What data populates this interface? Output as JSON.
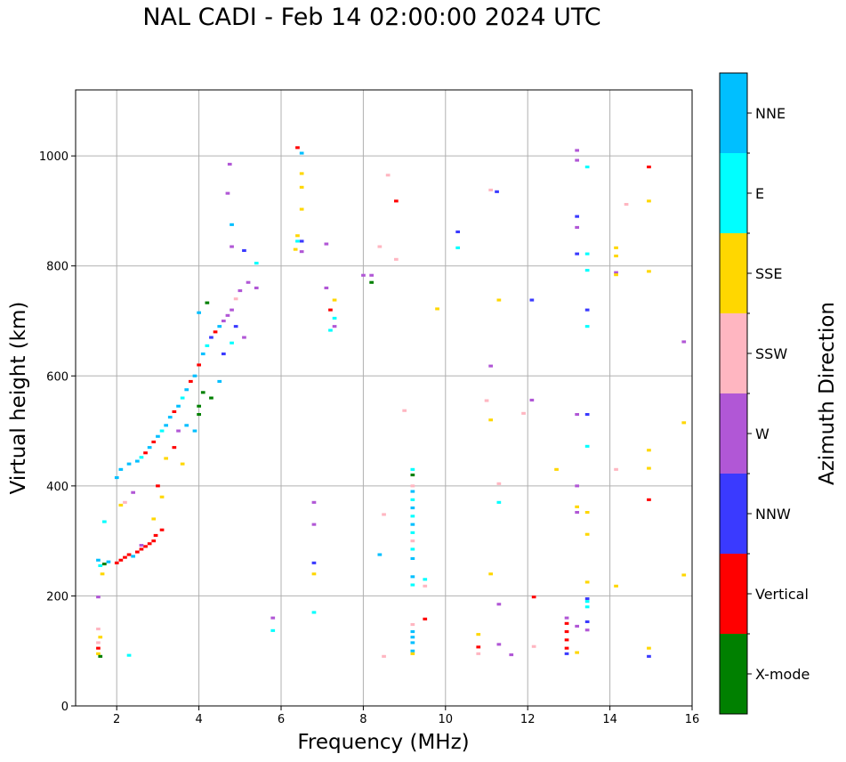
{
  "chart_data": {
    "type": "scatter",
    "title": "NAL CADI - Feb 14 02:00:00 2024 UTC",
    "xlabel": "Frequency (MHz)",
    "ylabel": "Virtual height (km)",
    "xlim": [
      1,
      16
    ],
    "ylim": [
      0,
      1120
    ],
    "xticks": [
      "2",
      "4",
      "6",
      "8",
      "10",
      "12",
      "14",
      "16"
    ],
    "yticks": [
      "0",
      "200",
      "400",
      "600",
      "800",
      "1000"
    ],
    "grid": true,
    "colorbar": {
      "label": "Azimuth Direction",
      "categories": [
        {
          "name": "X-mode",
          "color": "#008000"
        },
        {
          "name": "Vertical",
          "color": "#ff0000"
        },
        {
          "name": "NNW",
          "color": "#3a3aff"
        },
        {
          "name": "W",
          "color": "#b157d6"
        },
        {
          "name": "SSW",
          "color": "#ffb6c1"
        },
        {
          "name": "SSE",
          "color": "#ffd700"
        },
        {
          "name": "E",
          "color": "#00ffff"
        },
        {
          "name": "NNE",
          "color": "#00bfff"
        }
      ]
    },
    "points": [
      {
        "f": 1.55,
        "h": 95,
        "c": "SSE"
      },
      {
        "f": 1.55,
        "h": 105,
        "c": "Vertical"
      },
      {
        "f": 1.55,
        "h": 115,
        "c": "SSW"
      },
      {
        "f": 1.6,
        "h": 125,
        "c": "SSE"
      },
      {
        "f": 1.55,
        "h": 140,
        "c": "SSW"
      },
      {
        "f": 1.6,
        "h": 90,
        "c": "X-mode"
      },
      {
        "f": 1.55,
        "h": 198,
        "c": "W"
      },
      {
        "f": 1.55,
        "h": 265,
        "c": "NNE"
      },
      {
        "f": 1.6,
        "h": 255,
        "c": "E"
      },
      {
        "f": 1.7,
        "h": 258,
        "c": "X-mode"
      },
      {
        "f": 1.65,
        "h": 240,
        "c": "SSE"
      },
      {
        "f": 1.7,
        "h": 335,
        "c": "E"
      },
      {
        "f": 1.8,
        "h": 262,
        "c": "NNE"
      },
      {
        "f": 2.0,
        "h": 260,
        "c": "Vertical"
      },
      {
        "f": 2.1,
        "h": 265,
        "c": "Vertical"
      },
      {
        "f": 2.2,
        "h": 270,
        "c": "Vertical"
      },
      {
        "f": 2.3,
        "h": 275,
        "c": "Vertical"
      },
      {
        "f": 2.4,
        "h": 272,
        "c": "NNE"
      },
      {
        "f": 2.5,
        "h": 280,
        "c": "Vertical"
      },
      {
        "f": 2.6,
        "h": 285,
        "c": "Vertical"
      },
      {
        "f": 2.7,
        "h": 290,
        "c": "Vertical"
      },
      {
        "f": 2.8,
        "h": 295,
        "c": "Vertical"
      },
      {
        "f": 2.9,
        "h": 300,
        "c": "Vertical"
      },
      {
        "f": 2.95,
        "h": 310,
        "c": "Vertical"
      },
      {
        "f": 3.1,
        "h": 320,
        "c": "Vertical"
      },
      {
        "f": 2.6,
        "h": 292,
        "c": "W"
      },
      {
        "f": 2.3,
        "h": 92,
        "c": "E"
      },
      {
        "f": 2.1,
        "h": 365,
        "c": "SSE"
      },
      {
        "f": 2.2,
        "h": 370,
        "c": "SSW"
      },
      {
        "f": 2.4,
        "h": 388,
        "c": "W"
      },
      {
        "f": 2.0,
        "h": 415,
        "c": "NNE"
      },
      {
        "f": 2.1,
        "h": 430,
        "c": "NNE"
      },
      {
        "f": 2.3,
        "h": 440,
        "c": "NNE"
      },
      {
        "f": 2.5,
        "h": 445,
        "c": "NNE"
      },
      {
        "f": 2.6,
        "h": 452,
        "c": "E"
      },
      {
        "f": 2.7,
        "h": 460,
        "c": "Vertical"
      },
      {
        "f": 2.8,
        "h": 470,
        "c": "NNE"
      },
      {
        "f": 2.9,
        "h": 480,
        "c": "Vertical"
      },
      {
        "f": 3.0,
        "h": 490,
        "c": "NNE"
      },
      {
        "f": 3.1,
        "h": 500,
        "c": "E"
      },
      {
        "f": 3.2,
        "h": 510,
        "c": "NNE"
      },
      {
        "f": 3.3,
        "h": 525,
        "c": "NNE"
      },
      {
        "f": 3.4,
        "h": 535,
        "c": "Vertical"
      },
      {
        "f": 3.5,
        "h": 545,
        "c": "NNE"
      },
      {
        "f": 3.6,
        "h": 560,
        "c": "E"
      },
      {
        "f": 3.7,
        "h": 575,
        "c": "NNE"
      },
      {
        "f": 3.8,
        "h": 590,
        "c": "Vertical"
      },
      {
        "f": 3.9,
        "h": 600,
        "c": "NNE"
      },
      {
        "f": 4.0,
        "h": 620,
        "c": "Vertical"
      },
      {
        "f": 4.1,
        "h": 640,
        "c": "NNE"
      },
      {
        "f": 4.2,
        "h": 655,
        "c": "E"
      },
      {
        "f": 4.3,
        "h": 670,
        "c": "NNW"
      },
      {
        "f": 4.4,
        "h": 680,
        "c": "Vertical"
      },
      {
        "f": 4.5,
        "h": 690,
        "c": "NNE"
      },
      {
        "f": 4.6,
        "h": 700,
        "c": "W"
      },
      {
        "f": 4.7,
        "h": 710,
        "c": "W"
      },
      {
        "f": 4.8,
        "h": 720,
        "c": "W"
      },
      {
        "f": 4.9,
        "h": 740,
        "c": "SSW"
      },
      {
        "f": 5.0,
        "h": 755,
        "c": "W"
      },
      {
        "f": 5.2,
        "h": 770,
        "c": "W"
      },
      {
        "f": 5.4,
        "h": 760,
        "c": "W"
      },
      {
        "f": 4.2,
        "h": 733,
        "c": "X-mode"
      },
      {
        "f": 4.0,
        "h": 715,
        "c": "NNE"
      },
      {
        "f": 4.0,
        "h": 530,
        "c": "X-mode"
      },
      {
        "f": 4.0,
        "h": 545,
        "c": "X-mode"
      },
      {
        "f": 4.1,
        "h": 570,
        "c": "X-mode"
      },
      {
        "f": 3.2,
        "h": 450,
        "c": "SSE"
      },
      {
        "f": 3.4,
        "h": 470,
        "c": "Vertical"
      },
      {
        "f": 3.6,
        "h": 440,
        "c": "SSE"
      },
      {
        "f": 2.9,
        "h": 340,
        "c": "SSE"
      },
      {
        "f": 3.1,
        "h": 380,
        "c": "SSE"
      },
      {
        "f": 3.0,
        "h": 400,
        "c": "Vertical"
      },
      {
        "f": 3.5,
        "h": 500,
        "c": "W"
      },
      {
        "f": 3.7,
        "h": 510,
        "c": "NNE"
      },
      {
        "f": 3.9,
        "h": 500,
        "c": "NNE"
      },
      {
        "f": 4.3,
        "h": 560,
        "c": "X-mode"
      },
      {
        "f": 4.5,
        "h": 590,
        "c": "NNE"
      },
      {
        "f": 4.6,
        "h": 640,
        "c": "NNW"
      },
      {
        "f": 4.8,
        "h": 660,
        "c": "E"
      },
      {
        "f": 4.9,
        "h": 690,
        "c": "NNW"
      },
      {
        "f": 5.1,
        "h": 670,
        "c": "W"
      },
      {
        "f": 4.75,
        "h": 985,
        "c": "W"
      },
      {
        "f": 4.8,
        "h": 875,
        "c": "NNE"
      },
      {
        "f": 4.7,
        "h": 932,
        "c": "W"
      },
      {
        "f": 4.8,
        "h": 835,
        "c": "W"
      },
      {
        "f": 5.1,
        "h": 828,
        "c": "NNW"
      },
      {
        "f": 5.4,
        "h": 805,
        "c": "E"
      },
      {
        "f": 5.8,
        "h": 137,
        "c": "E"
      },
      {
        "f": 5.8,
        "h": 160,
        "c": "W"
      },
      {
        "f": 6.4,
        "h": 1015,
        "c": "Vertical"
      },
      {
        "f": 6.5,
        "h": 1005,
        "c": "NNE"
      },
      {
        "f": 6.5,
        "h": 968,
        "c": "SSE"
      },
      {
        "f": 6.5,
        "h": 943,
        "c": "SSE"
      },
      {
        "f": 6.5,
        "h": 903,
        "c": "SSE"
      },
      {
        "f": 6.4,
        "h": 855,
        "c": "SSE"
      },
      {
        "f": 6.5,
        "h": 845,
        "c": "NNW"
      },
      {
        "f": 6.35,
        "h": 830,
        "c": "SSE"
      },
      {
        "f": 6.5,
        "h": 826,
        "c": "W"
      },
      {
        "f": 6.4,
        "h": 845,
        "c": "E"
      },
      {
        "f": 6.8,
        "h": 370,
        "c": "W"
      },
      {
        "f": 6.8,
        "h": 330,
        "c": "W"
      },
      {
        "f": 6.8,
        "h": 260,
        "c": "NNW"
      },
      {
        "f": 6.8,
        "h": 240,
        "c": "SSE"
      },
      {
        "f": 6.8,
        "h": 170,
        "c": "E"
      },
      {
        "f": 7.1,
        "h": 840,
        "c": "W"
      },
      {
        "f": 7.1,
        "h": 760,
        "c": "W"
      },
      {
        "f": 7.2,
        "h": 720,
        "c": "Vertical"
      },
      {
        "f": 7.3,
        "h": 738,
        "c": "SSE"
      },
      {
        "f": 7.3,
        "h": 705,
        "c": "E"
      },
      {
        "f": 7.3,
        "h": 690,
        "c": "W"
      },
      {
        "f": 7.2,
        "h": 683,
        "c": "E"
      },
      {
        "f": 8.0,
        "h": 783,
        "c": "W"
      },
      {
        "f": 8.2,
        "h": 783,
        "c": "W"
      },
      {
        "f": 8.2,
        "h": 770,
        "c": "X-mode"
      },
      {
        "f": 8.4,
        "h": 835,
        "c": "SSW"
      },
      {
        "f": 8.6,
        "h": 965,
        "c": "SSW"
      },
      {
        "f": 8.8,
        "h": 918,
        "c": "Vertical"
      },
      {
        "f": 8.8,
        "h": 812,
        "c": "SSW"
      },
      {
        "f": 8.5,
        "h": 348,
        "c": "SSW"
      },
      {
        "f": 8.4,
        "h": 275,
        "c": "NNE"
      },
      {
        "f": 8.5,
        "h": 90,
        "c": "SSW"
      },
      {
        "f": 9.0,
        "h": 537,
        "c": "SSW"
      },
      {
        "f": 9.2,
        "h": 430,
        "c": "E"
      },
      {
        "f": 9.2,
        "h": 420,
        "c": "X-mode"
      },
      {
        "f": 9.2,
        "h": 400,
        "c": "SSW"
      },
      {
        "f": 9.2,
        "h": 390,
        "c": "NNE"
      },
      {
        "f": 9.2,
        "h": 375,
        "c": "E"
      },
      {
        "f": 9.2,
        "h": 360,
        "c": "NNE"
      },
      {
        "f": 9.2,
        "h": 345,
        "c": "E"
      },
      {
        "f": 9.2,
        "h": 330,
        "c": "NNE"
      },
      {
        "f": 9.2,
        "h": 315,
        "c": "E"
      },
      {
        "f": 9.2,
        "h": 300,
        "c": "SSW"
      },
      {
        "f": 9.2,
        "h": 285,
        "c": "E"
      },
      {
        "f": 9.2,
        "h": 268,
        "c": "NNE"
      },
      {
        "f": 9.2,
        "h": 235,
        "c": "NNE"
      },
      {
        "f": 9.2,
        "h": 220,
        "c": "E"
      },
      {
        "f": 9.5,
        "h": 230,
        "c": "E"
      },
      {
        "f": 9.5,
        "h": 218,
        "c": "SSW"
      },
      {
        "f": 9.5,
        "h": 158,
        "c": "Vertical"
      },
      {
        "f": 9.2,
        "h": 148,
        "c": "SSW"
      },
      {
        "f": 9.2,
        "h": 135,
        "c": "NNE"
      },
      {
        "f": 9.2,
        "h": 125,
        "c": "NNE"
      },
      {
        "f": 9.2,
        "h": 115,
        "c": "NNE"
      },
      {
        "f": 9.2,
        "h": 100,
        "c": "NNE"
      },
      {
        "f": 9.2,
        "h": 95,
        "c": "SSE"
      },
      {
        "f": 9.8,
        "h": 722,
        "c": "SSE"
      },
      {
        "f": 10.3,
        "h": 862,
        "c": "NNW"
      },
      {
        "f": 10.3,
        "h": 833,
        "c": "E"
      },
      {
        "f": 10.8,
        "h": 130,
        "c": "SSE"
      },
      {
        "f": 10.8,
        "h": 107,
        "c": "Vertical"
      },
      {
        "f": 10.8,
        "h": 95,
        "c": "SSW"
      },
      {
        "f": 11.0,
        "h": 555,
        "c": "SSW"
      },
      {
        "f": 11.1,
        "h": 618,
        "c": "W"
      },
      {
        "f": 11.1,
        "h": 520,
        "c": "SSE"
      },
      {
        "f": 11.1,
        "h": 240,
        "c": "SSE"
      },
      {
        "f": 11.1,
        "h": 938,
        "c": "SSW"
      },
      {
        "f": 11.25,
        "h": 935,
        "c": "NNW"
      },
      {
        "f": 11.3,
        "h": 738,
        "c": "SSE"
      },
      {
        "f": 11.3,
        "h": 404,
        "c": "SSW"
      },
      {
        "f": 11.3,
        "h": 370,
        "c": "E"
      },
      {
        "f": 11.3,
        "h": 185,
        "c": "W"
      },
      {
        "f": 11.3,
        "h": 112,
        "c": "W"
      },
      {
        "f": 11.6,
        "h": 93,
        "c": "W"
      },
      {
        "f": 11.9,
        "h": 532,
        "c": "SSW"
      },
      {
        "f": 12.1,
        "h": 738,
        "c": "NNW"
      },
      {
        "f": 12.1,
        "h": 556,
        "c": "W"
      },
      {
        "f": 12.15,
        "h": 198,
        "c": "Vertical"
      },
      {
        "f": 12.15,
        "h": 108,
        "c": "SSW"
      },
      {
        "f": 12.7,
        "h": 430,
        "c": "SSE"
      },
      {
        "f": 12.95,
        "h": 160,
        "c": "W"
      },
      {
        "f": 12.95,
        "h": 150,
        "c": "Vertical"
      },
      {
        "f": 12.95,
        "h": 135,
        "c": "Vertical"
      },
      {
        "f": 12.95,
        "h": 120,
        "c": "Vertical"
      },
      {
        "f": 12.95,
        "h": 105,
        "c": "Vertical"
      },
      {
        "f": 12.95,
        "h": 95,
        "c": "NNW"
      },
      {
        "f": 13.2,
        "h": 1010,
        "c": "W"
      },
      {
        "f": 13.2,
        "h": 992,
        "c": "W"
      },
      {
        "f": 13.2,
        "h": 890,
        "c": "NNW"
      },
      {
        "f": 13.2,
        "h": 870,
        "c": "W"
      },
      {
        "f": 13.2,
        "h": 822,
        "c": "NNW"
      },
      {
        "f": 13.2,
        "h": 530,
        "c": "W"
      },
      {
        "f": 13.2,
        "h": 400,
        "c": "W"
      },
      {
        "f": 13.2,
        "h": 362,
        "c": "SSE"
      },
      {
        "f": 13.2,
        "h": 352,
        "c": "W"
      },
      {
        "f": 13.2,
        "h": 145,
        "c": "W"
      },
      {
        "f": 13.2,
        "h": 97,
        "c": "SSE"
      },
      {
        "f": 13.45,
        "h": 980,
        "c": "E"
      },
      {
        "f": 13.45,
        "h": 822,
        "c": "E"
      },
      {
        "f": 13.45,
        "h": 792,
        "c": "E"
      },
      {
        "f": 13.45,
        "h": 720,
        "c": "NNW"
      },
      {
        "f": 13.45,
        "h": 690,
        "c": "E"
      },
      {
        "f": 13.45,
        "h": 530,
        "c": "NNW"
      },
      {
        "f": 13.45,
        "h": 472,
        "c": "E"
      },
      {
        "f": 13.45,
        "h": 352,
        "c": "SSE"
      },
      {
        "f": 13.45,
        "h": 312,
        "c": "SSE"
      },
      {
        "f": 13.45,
        "h": 225,
        "c": "SSE"
      },
      {
        "f": 13.45,
        "h": 195,
        "c": "NNW"
      },
      {
        "f": 13.45,
        "h": 190,
        "c": "E"
      },
      {
        "f": 13.45,
        "h": 180,
        "c": "E"
      },
      {
        "f": 13.45,
        "h": 153,
        "c": "NNW"
      },
      {
        "f": 13.45,
        "h": 138,
        "c": "W"
      },
      {
        "f": 14.15,
        "h": 833,
        "c": "SSE"
      },
      {
        "f": 14.15,
        "h": 818,
        "c": "SSE"
      },
      {
        "f": 14.15,
        "h": 788,
        "c": "W"
      },
      {
        "f": 14.15,
        "h": 784,
        "c": "SSE"
      },
      {
        "f": 14.15,
        "h": 430,
        "c": "SSW"
      },
      {
        "f": 14.15,
        "h": 218,
        "c": "SSE"
      },
      {
        "f": 14.4,
        "h": 912,
        "c": "SSW"
      },
      {
        "f": 14.95,
        "h": 980,
        "c": "Vertical"
      },
      {
        "f": 14.95,
        "h": 918,
        "c": "SSE"
      },
      {
        "f": 14.95,
        "h": 790,
        "c": "SSE"
      },
      {
        "f": 14.95,
        "h": 465,
        "c": "SSE"
      },
      {
        "f": 14.95,
        "h": 432,
        "c": "SSE"
      },
      {
        "f": 14.95,
        "h": 375,
        "c": "Vertical"
      },
      {
        "f": 14.95,
        "h": 105,
        "c": "SSE"
      },
      {
        "f": 14.95,
        "h": 90,
        "c": "NNW"
      },
      {
        "f": 15.8,
        "h": 662,
        "c": "W"
      },
      {
        "f": 15.8,
        "h": 515,
        "c": "SSE"
      },
      {
        "f": 15.8,
        "h": 238,
        "c": "SSE"
      }
    ]
  }
}
